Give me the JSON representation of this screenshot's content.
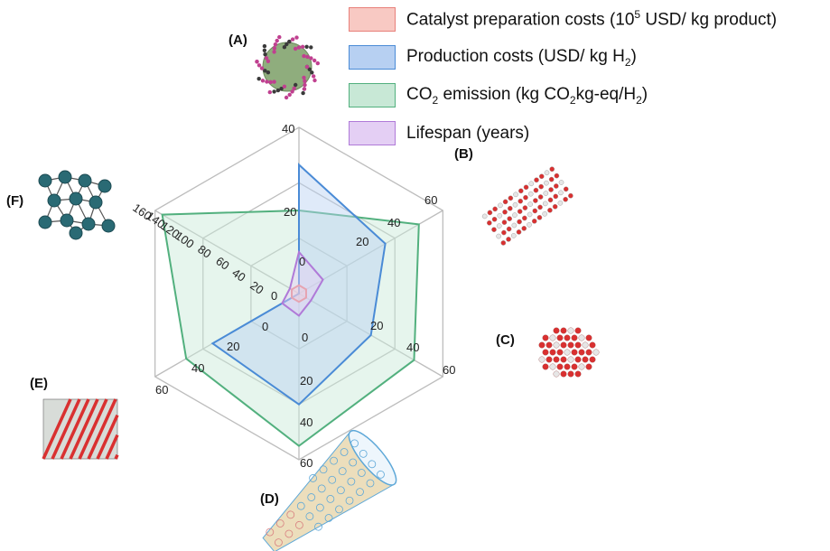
{
  "chart_data": {
    "type": "radar",
    "axes": [
      "A",
      "B",
      "C",
      "D",
      "E",
      "F"
    ],
    "axis_ticks": [
      [
        "20",
        "40"
      ],
      [
        "20",
        "40",
        "60"
      ],
      [
        "20",
        "40",
        "60"
      ],
      [
        "20",
        "40",
        "60"
      ],
      [
        "20",
        "40",
        "60"
      ],
      [
        "20",
        "40",
        "60",
        "80",
        "100",
        "120",
        "140",
        "160"
      ]
    ],
    "axis_max": [
      40,
      60,
      60,
      60,
      60,
      160
    ],
    "zero_labels": [
      "0",
      "0",
      "0",
      "0"
    ],
    "series": [
      {
        "label_pre": "Catalyst preparation costs (10",
        "label_sup": "5",
        "label_post": " USD/ kg product)",
        "color": "#e8807a",
        "fill": "#f8c9c3",
        "values": [
          2,
          3,
          3,
          3,
          3,
          8
        ]
      },
      {
        "label_pre": "Production costs (USD/ kg H",
        "label_sub": "2",
        "label_post": ")",
        "color": "#4a8bd6",
        "fill": "#b7d0f2",
        "values": [
          31,
          36,
          30,
          40,
          36,
          0
        ]
      },
      {
        "label_pre": "CO",
        "label_sub": "2",
        "label_mid": " emission (kg CO",
        "label_sub2": "2",
        "label_post": "kg-eq/H",
        "label_sub3": "2",
        "label_post2": ")",
        "color": "#52b07e",
        "fill": "#c8e8d6",
        "values": [
          20,
          50,
          48,
          55,
          47,
          152
        ]
      },
      {
        "label_pre": "Lifespan (years)",
        "color": "#b07ad8",
        "fill": "#e4cff4",
        "values": [
          10,
          10,
          5,
          8,
          7,
          10
        ]
      }
    ]
  },
  "panels": [
    "(A)",
    "(B)",
    "(C)",
    "(D)",
    "(E)",
    "(F)"
  ],
  "colors": {
    "grid": "#bdbdbd",
    "sphere": "#8fad7d",
    "atom_red": "#d93030",
    "atom_white": "#e6e6e6",
    "atom_teal": "#2a6a74",
    "atom_dark": "#3a3a3a",
    "atom_pink": "#c04090",
    "atom_green": "#4e9a5a",
    "tube_blue": "#5ea8d8",
    "tube_gold": "#c8a040",
    "tube_pink": "#d88080"
  }
}
